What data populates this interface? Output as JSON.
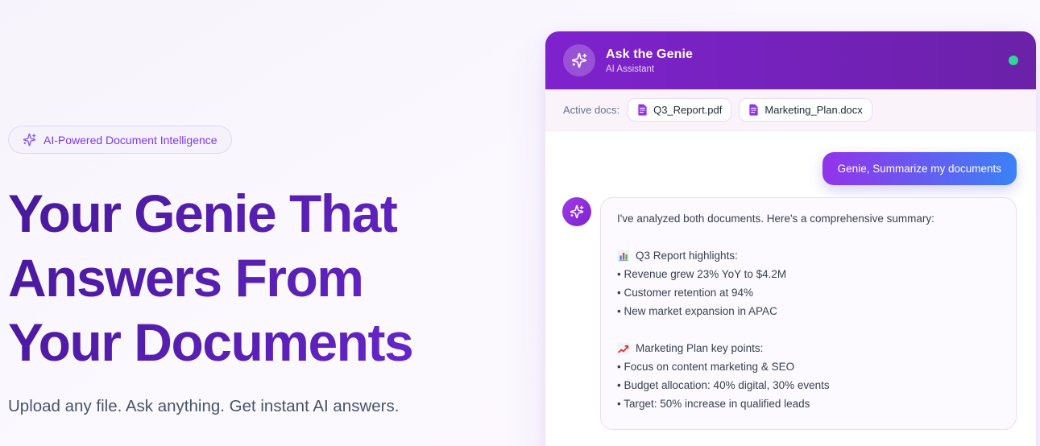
{
  "hero": {
    "badge": "AI-Powered Document Intelligence",
    "title_lines": [
      "Your Genie That",
      "Answers From",
      "Your Documents"
    ],
    "subtitle": "Upload any file. Ask anything. Get instant AI answers."
  },
  "chat": {
    "title": "Ask the Genie",
    "subtitle": "AI Assistant",
    "status": "online",
    "active_docs_label": "Active docs:",
    "active_docs": [
      {
        "name": "Q3_Report.pdf",
        "icon": "document-icon"
      },
      {
        "name": "Marketing_Plan.docx",
        "icon": "document-icon"
      }
    ],
    "user_message": "Genie, Summarize my documents",
    "ai_message": {
      "intro": "I've analyzed both documents. Here's a comprehensive summary:",
      "bullet_prefix": "• ",
      "sections": [
        {
          "icon": "bar-chart-icon",
          "title": "Q3 Report highlights:",
          "bullets": [
            "Revenue grew 23% YoY to $4.2M",
            "Customer retention at 94%",
            "New market expansion in APAC"
          ]
        },
        {
          "icon": "line-chart-icon",
          "title": "Marketing Plan key points:",
          "bullets": [
            "Focus on content marketing & SEO",
            "Budget allocation: 40% digital, 30% events",
            "Target: 50% increase in qualified leads"
          ]
        }
      ]
    }
  },
  "colors": {
    "header_gradient_start": "#7E22CE",
    "header_gradient_end": "#6B21A8",
    "user_bubble_gradient_start": "#9333EA",
    "user_bubble_gradient_end": "#3B82F6",
    "status_online": "#34D399",
    "accent_purple": "#7C3AED",
    "heading_gradient_start": "#48199B",
    "heading_gradient_end": "#6D28D9"
  }
}
